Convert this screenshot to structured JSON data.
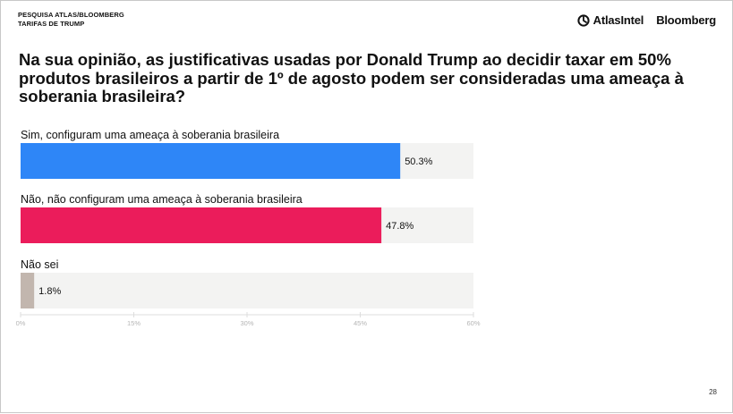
{
  "header": {
    "line1": "PESQUISA ATLAS/BLOOMBERG",
    "line2": "TARIFAS DE TRUMP",
    "logo_atlas": "AtlasIntel",
    "logo_bloomberg": "Bloomberg"
  },
  "page_number": "28",
  "chart_data": {
    "type": "bar",
    "orientation": "horizontal",
    "title": "Na sua opinião, as justificativas usadas por Donald Trump ao decidir taxar em 50% produtos brasileiros a partir de 1º de agosto podem ser consideradas uma ameaça à soberania brasileira?",
    "categories": [
      "Sim, configuram uma ameaça à soberania brasileira",
      "Não, não configuram uma ameaça à soberania brasileira",
      "Não sei"
    ],
    "values": [
      50.3,
      47.8,
      1.8
    ],
    "value_labels": [
      "50.3%",
      "47.8%",
      "1.8%"
    ],
    "colors": [
      "#2e86f7",
      "#eb1c5b",
      "#c2b6ae"
    ],
    "track_color": "#f3f3f2",
    "xlim": [
      0,
      60
    ],
    "xticks": [
      0,
      15,
      30,
      45,
      60
    ],
    "xtick_labels": [
      "0%",
      "15%",
      "30%",
      "45%",
      "60%"
    ],
    "grid": false,
    "legend": "none"
  }
}
